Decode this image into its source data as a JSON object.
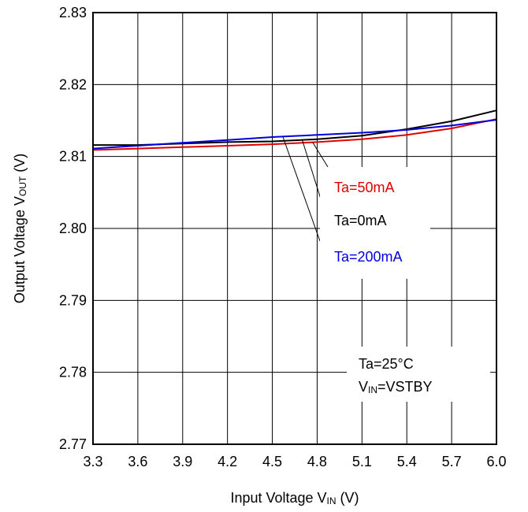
{
  "chart_data": {
    "type": "line",
    "xlabel_parts": {
      "main": "Input Voltage V",
      "sub": "IN",
      "unit": " (V)"
    },
    "ylabel_parts": {
      "main": "Output Voltage V",
      "sub": "OUT",
      "unit": " (V)"
    },
    "xlim": [
      3.3,
      6.0
    ],
    "ylim": [
      2.77,
      2.83
    ],
    "x_ticks": [
      "3.3",
      "3.6",
      "3.9",
      "4.2",
      "4.5",
      "4.8",
      "5.1",
      "5.4",
      "5.7",
      "6.0"
    ],
    "y_ticks": [
      "2.77",
      "2.78",
      "2.79",
      "2.80",
      "2.81",
      "2.82",
      "2.83"
    ],
    "grid": true,
    "series": [
      {
        "name": "Ta=50mA",
        "color": "#e00000",
        "x": [
          3.3,
          3.6,
          3.9,
          4.2,
          4.5,
          4.8,
          5.1,
          5.4,
          5.7,
          6.0
        ],
        "y": [
          2.8109,
          2.8111,
          2.8113,
          2.8115,
          2.8117,
          2.812,
          2.8124,
          2.813,
          2.8139,
          2.8152
        ]
      },
      {
        "name": "Ta=0mA",
        "color": "#000000",
        "x": [
          3.3,
          3.6,
          3.9,
          4.2,
          4.5,
          4.8,
          5.1,
          5.4,
          5.7,
          6.0
        ],
        "y": [
          2.8116,
          2.8116,
          2.8118,
          2.812,
          2.8121,
          2.8124,
          2.8129,
          2.8138,
          2.8149,
          2.8164
        ]
      },
      {
        "name": "Ta=200mA",
        "color": "#0000dd",
        "x": [
          3.3,
          3.6,
          3.9,
          4.2,
          4.5,
          4.8,
          5.1,
          5.4,
          5.7,
          6.0
        ],
        "y": [
          2.8111,
          2.8115,
          2.8119,
          2.8123,
          2.8127,
          2.813,
          2.8133,
          2.8137,
          2.8143,
          2.8151
        ]
      }
    ],
    "conditions": {
      "line1": "Ta=25°C",
      "line2_main": "V",
      "line2_sub": "IN",
      "line2_rest": "=VSTBY"
    }
  }
}
